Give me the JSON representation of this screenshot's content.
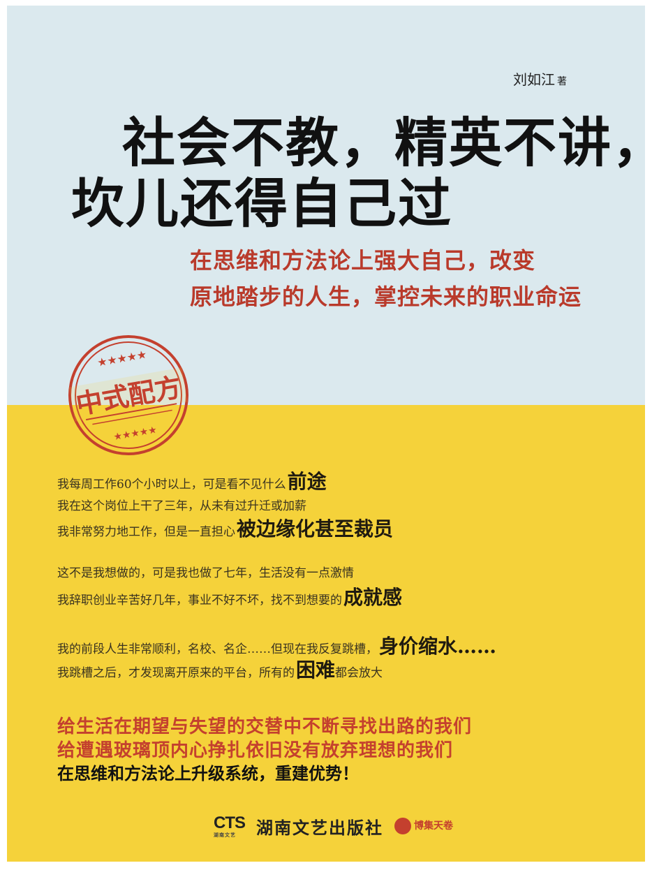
{
  "cover": {
    "author_name": "刘如江",
    "author_suffix": "著",
    "title_line1": "社会不教，精英不讲，",
    "title_line2": "坎儿还得自己过",
    "subtitle_line1": "在思维和方法论上强大自己，改变",
    "subtitle_line2": "原地踏步的人生，掌控未来的职业命运",
    "stamp": {
      "main": "中式配方",
      "stars": "★★★★★",
      "bottom_text": "★★★★★"
    },
    "paragraphs": [
      {
        "prefix": "我每周工作60个小时以上，可是看不见什么",
        "big": "前途"
      },
      {
        "prefix": "我在这个岗位上干了三年，从未有过升迁或加薪",
        "big": ""
      },
      {
        "prefix": "我非常努力地工作，但是一直担心",
        "big": "被边缘化甚至裁员"
      },
      {
        "prefix": "这不是我想做的，可是我也做了七年，生活没有一点激情",
        "big": ""
      },
      {
        "prefix": "我辞职创业辛苦好几年，事业不好不坏，找不到想要的",
        "big": "成就感"
      },
      {
        "prefix": "我的前段人生非常顺利，名校、名企……但现在我反复跳槽，",
        "big": "身价缩水……"
      },
      {
        "prefix": "我跳槽之后，才发现离开原来的平台，所有的",
        "big": "困难",
        "suffix": "都会放大"
      }
    ],
    "red_line1": "给生活在期望与失望的交替中不断寻找出路的我们",
    "red_line2": "给遭遇玻璃顶内心挣扎依旧没有放弃理想的我们",
    "final_line": "在思维和方法论上升级系统，重建优势！",
    "publisher": {
      "cts_mark": "CTS",
      "cts_sub": "湖南文艺",
      "name": "湖南文艺出版社",
      "partner": "博集天卷"
    }
  },
  "colors": {
    "top_bg": "#dbe9ee",
    "bottom_bg": "#f5d23a",
    "accent_red": "#c4402e"
  }
}
